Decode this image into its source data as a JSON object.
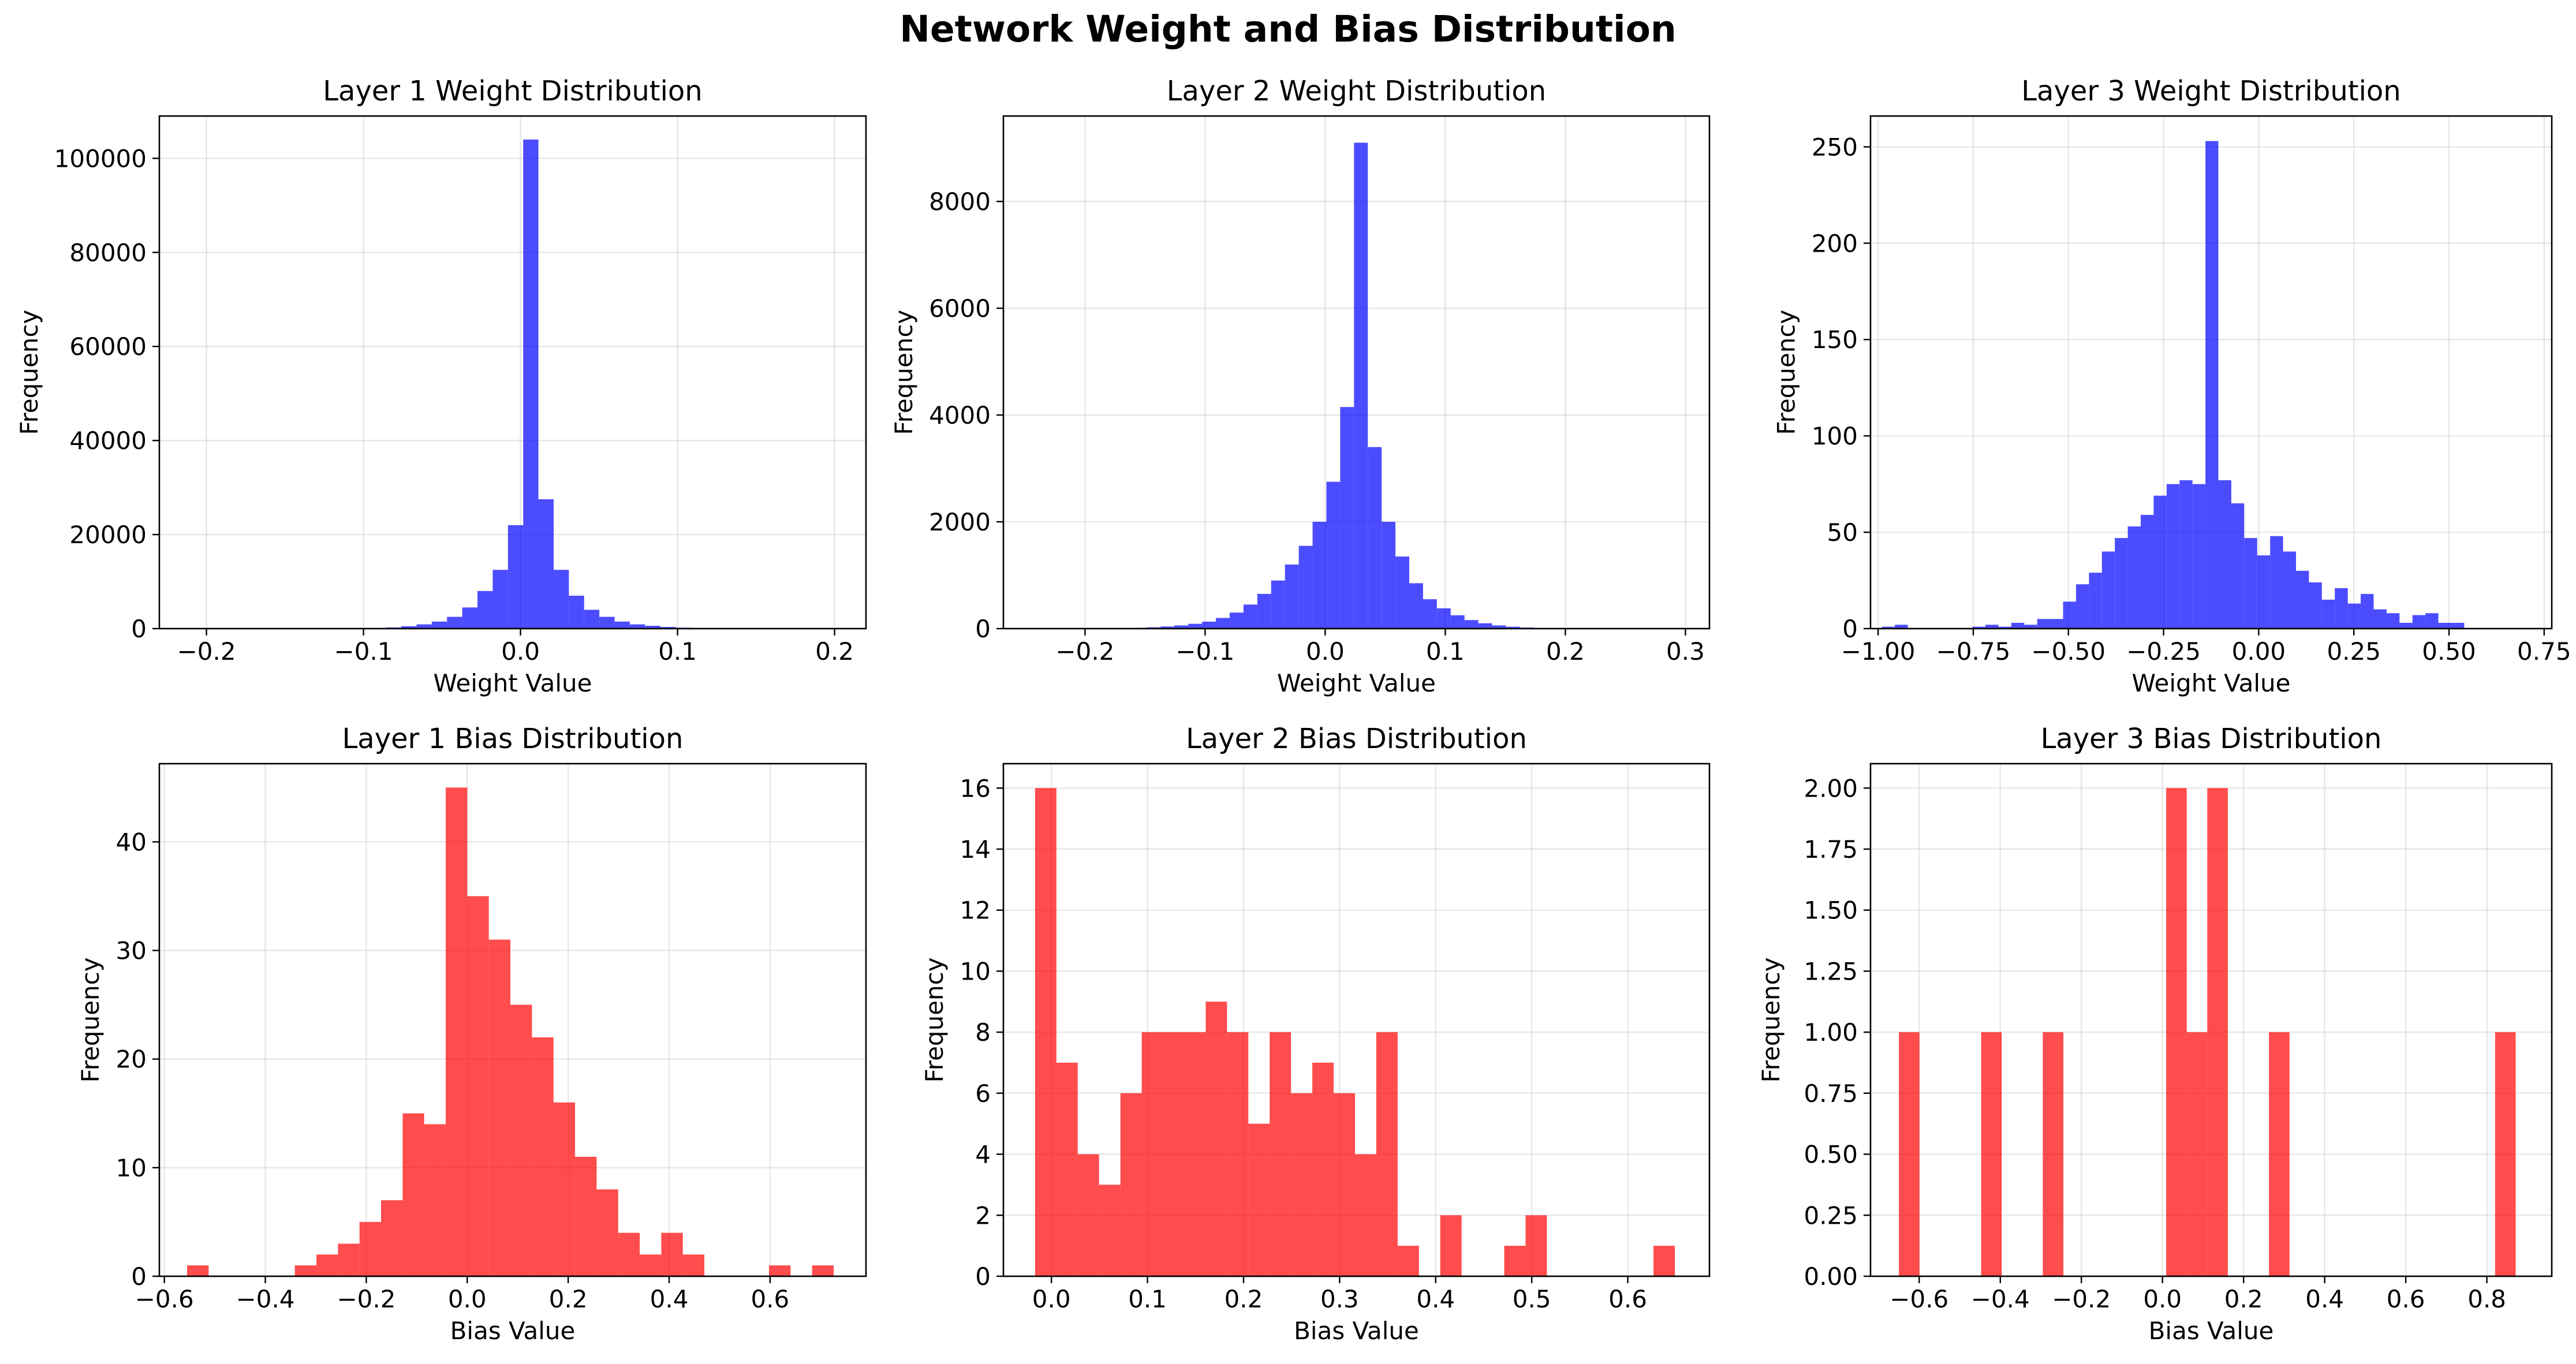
{
  "figure": {
    "title": "Network Weight and Bias Distribution"
  },
  "chart_data": [
    {
      "type": "bar",
      "title": "Layer 1 Weight Distribution",
      "xlabel": "Weight Value",
      "ylabel": "Frequency",
      "color": "#0000ff",
      "xlim": [
        -0.23,
        0.22
      ],
      "ylim": [
        0,
        109000
      ],
      "xticks": [
        -0.2,
        -0.1,
        0.0,
        0.1,
        0.2
      ],
      "xtick_labels": [
        "−0.2",
        "−0.1",
        "0.0",
        "0.1",
        "0.2"
      ],
      "yticks": [
        0,
        20000,
        40000,
        60000,
        80000,
        100000
      ],
      "ytick_labels": [
        "0",
        "20000",
        "40000",
        "60000",
        "80000",
        "100000"
      ],
      "bin_start": -0.105,
      "bin_width": 0.0097,
      "values": [
        50,
        120,
        250,
        500,
        900,
        1500,
        2500,
        4500,
        8000,
        12500,
        22000,
        104000,
        27500,
        12500,
        7000,
        4000,
        2500,
        1500,
        900,
        600,
        350,
        200,
        100
      ]
    },
    {
      "type": "bar",
      "title": "Layer 2 Weight Distribution",
      "xlabel": "Weight Value",
      "ylabel": "Frequency",
      "color": "#0000ff",
      "xlim": [
        -0.268,
        0.32
      ],
      "ylim": [
        0,
        9600
      ],
      "xticks": [
        -0.2,
        -0.1,
        0.0,
        0.1,
        0.2,
        0.3
      ],
      "xtick_labels": [
        "−0.2",
        "−0.1",
        "0.0",
        "0.1",
        "0.2",
        "0.3"
      ],
      "yticks": [
        0,
        2000,
        4000,
        6000,
        8000
      ],
      "ytick_labels": [
        "0",
        "2000",
        "4000",
        "6000",
        "8000"
      ],
      "bin_start": -0.16,
      "bin_width": 0.0115,
      "values": [
        15,
        25,
        40,
        60,
        90,
        130,
        200,
        300,
        450,
        650,
        900,
        1200,
        1550,
        2000,
        2750,
        4150,
        9100,
        3400,
        2000,
        1350,
        850,
        550,
        380,
        250,
        160,
        100,
        60,
        35,
        20,
        12,
        8
      ]
    },
    {
      "type": "bar",
      "title": "Layer 3 Weight Distribution",
      "xlabel": "Weight Value",
      "ylabel": "Frequency",
      "color": "#0000ff",
      "xlim": [
        -1.02,
        0.77
      ],
      "ylim": [
        0,
        266
      ],
      "xticks": [
        -1.0,
        -0.75,
        -0.5,
        -0.25,
        0.0,
        0.25,
        0.5,
        0.75
      ],
      "xtick_labels": [
        "−1.00",
        "−0.75",
        "−0.50",
        "−0.25",
        "0.00",
        "0.25",
        "0.50",
        "0.75"
      ],
      "yticks": [
        0,
        50,
        100,
        150,
        200,
        250
      ],
      "ytick_labels": [
        "0",
        "50",
        "100",
        "150",
        "200",
        "250"
      ],
      "bin_start": -0.99,
      "bin_width": 0.034,
      "values": [
        1,
        2,
        0,
        0,
        0,
        0,
        0,
        1,
        2,
        1,
        3,
        2,
        5,
        5,
        14,
        23,
        29,
        40,
        47,
        53,
        59,
        69,
        75,
        77,
        75,
        253,
        77,
        65,
        47,
        38,
        48,
        40,
        30,
        24,
        15,
        21,
        13,
        18,
        10,
        8,
        3,
        7,
        8,
        3,
        3
      ]
    },
    {
      "type": "bar",
      "title": "Layer 1 Bias Distribution",
      "xlabel": "Bias Value",
      "ylabel": "Frequency",
      "color": "#ff0000",
      "xlim": [
        -0.61,
        0.79
      ],
      "ylim": [
        0,
        47.2
      ],
      "xticks": [
        -0.6,
        -0.4,
        -0.2,
        0.0,
        0.2,
        0.4,
        0.6
      ],
      "xtick_labels": [
        "−0.6",
        "−0.4",
        "−0.2",
        "0.0",
        "0.2",
        "0.4",
        "0.6"
      ],
      "yticks": [
        0,
        10,
        20,
        30,
        40
      ],
      "ytick_labels": [
        "0",
        "10",
        "20",
        "30",
        "40"
      ],
      "bin_start": -0.555,
      "bin_width": 0.0427,
      "values": [
        1,
        0,
        0,
        0,
        0,
        1,
        2,
        3,
        5,
        7,
        15,
        14,
        45,
        35,
        31,
        25,
        22,
        16,
        11,
        8,
        4,
        2,
        4,
        2,
        0,
        0,
        0,
        1,
        0,
        1
      ]
    },
    {
      "type": "bar",
      "title": "Layer 2 Bias Distribution",
      "xlabel": "Bias Value",
      "ylabel": "Frequency",
      "color": "#ff0000",
      "xlim": [
        -0.05,
        0.685
      ],
      "ylim": [
        0,
        16.8
      ],
      "xticks": [
        0.0,
        0.1,
        0.2,
        0.3,
        0.4,
        0.5,
        0.6
      ],
      "xtick_labels": [
        "0.0",
        "0.1",
        "0.2",
        "0.3",
        "0.4",
        "0.5",
        "0.6"
      ],
      "yticks": [
        0,
        2,
        4,
        6,
        8,
        10,
        12,
        14,
        16
      ],
      "ytick_labels": [
        "0",
        "2",
        "4",
        "6",
        "8",
        "10",
        "12",
        "14",
        "16"
      ],
      "bin_start": -0.017,
      "bin_width": 0.0222,
      "values": [
        16,
        7,
        4,
        3,
        6,
        8,
        8,
        8,
        9,
        8,
        5,
        8,
        6,
        7,
        6,
        4,
        8,
        1,
        0,
        2,
        0,
        0,
        1,
        2,
        0,
        0,
        0,
        0,
        0,
        1
      ]
    },
    {
      "type": "bar",
      "title": "Layer 3 Bias Distribution",
      "xlabel": "Bias Value",
      "ylabel": "Frequency",
      "color": "#ff0000",
      "xlim": [
        -0.72,
        0.96
      ],
      "ylim": [
        0,
        2.1
      ],
      "xticks": [
        -0.6,
        -0.4,
        -0.2,
        0.0,
        0.2,
        0.4,
        0.6,
        0.8
      ],
      "xtick_labels": [
        "−0.6",
        "−0.4",
        "−0.2",
        "0.0",
        "0.2",
        "0.4",
        "0.6",
        "0.8"
      ],
      "yticks": [
        0,
        0.25,
        0.5,
        0.75,
        1.0,
        1.25,
        1.5,
        1.75,
        2.0
      ],
      "ytick_labels": [
        "0.00",
        "0.25",
        "0.50",
        "0.75",
        "1.00",
        "1.25",
        "1.50",
        "1.75",
        "2.00"
      ],
      "bin_start": -0.65,
      "bin_width": 0.0507,
      "values": [
        1,
        0,
        0,
        0,
        1,
        0,
        0,
        1,
        0,
        0,
        0,
        0,
        0,
        2,
        1,
        2,
        0,
        0,
        1,
        0,
        0,
        0,
        0,
        0,
        0,
        0,
        0,
        0,
        0,
        1
      ]
    }
  ]
}
